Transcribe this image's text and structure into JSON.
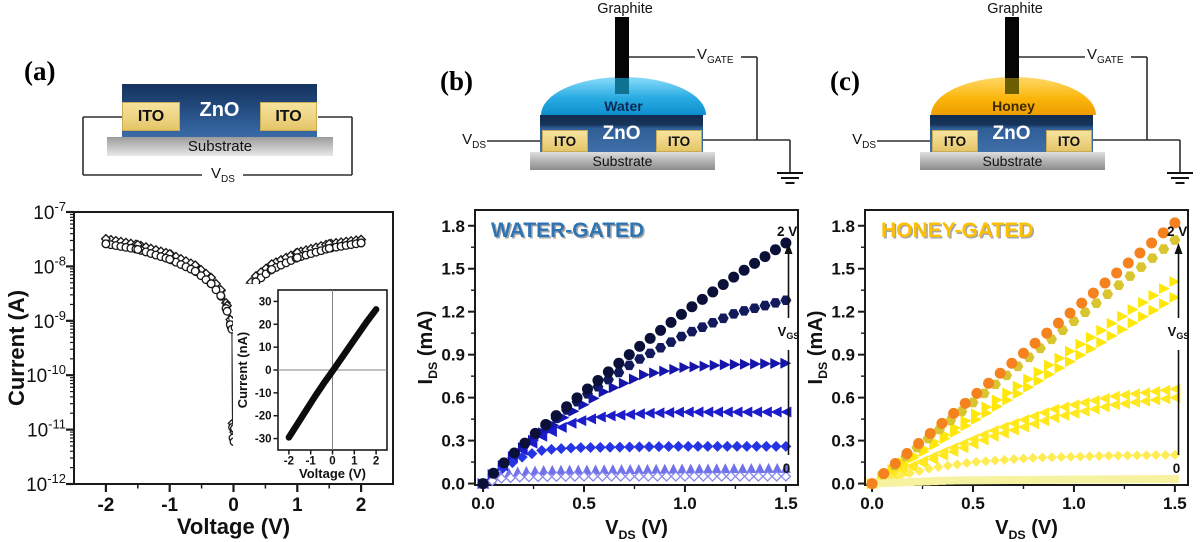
{
  "figure": {
    "background": "#FFFFFF"
  },
  "schematics": {
    "a": {
      "panel_label": "(a)",
      "zno": "ZnO",
      "ito_left": "ITO",
      "ito_right": "ITO",
      "substrate": "Substrate",
      "vds_base": "V",
      "vds_sub": "DS"
    },
    "b": {
      "panel_label": "(b)",
      "graphite": "Graphite",
      "droplet": "Water",
      "droplet_colors": [
        "#8ADCF9",
        "#29ABE2",
        "#0D8FCE"
      ],
      "droplet_label_color": "#0A2A52",
      "stub_color": "#0F7293",
      "zno": "ZnO",
      "ito_left": "ITO",
      "ito_right": "ITO",
      "substrate": "Substrate",
      "vds_base": "V",
      "vds_sub": "DS",
      "vgate_base": "V",
      "vgate_sub": "GATE"
    },
    "c": {
      "panel_label": "(c)",
      "graphite": "Graphite",
      "droplet": "Honey",
      "droplet_colors": [
        "#FFD96A",
        "#FBB60C",
        "#EE9D00"
      ],
      "droplet_label_color": "#3D2B00",
      "stub_color": "#6B5D00",
      "zno": "ZnO",
      "ito_left": "ITO",
      "ito_right": "ITO",
      "substrate": "Substrate",
      "vds_base": "V",
      "vds_sub": "DS",
      "vgate_base": "V",
      "vgate_sub": "GATE"
    }
  },
  "chart_data": [
    {
      "id": "device-iv",
      "type": "scatter",
      "x_scale": "linear",
      "y_scale": "log",
      "xlabel": "Voltage (V)",
      "ylabel": "Current (A)",
      "xlim": [
        -2.5,
        2.5
      ],
      "x_ticks": [
        -2,
        -1,
        0,
        1,
        2
      ],
      "x_tick_labels": [
        "-2",
        "-1",
        "0",
        "1",
        "2"
      ],
      "x_minor": [
        -1.5,
        -0.5,
        0.5,
        1.5
      ],
      "ylim_exp": [
        -12,
        -7
      ],
      "y_ticks_exp": [
        -7,
        -8,
        -9,
        -10,
        -11,
        -12
      ],
      "series": [
        {
          "name": "iv-sweep-open-diamonds",
          "marker": "diamond",
          "fill": "#FFFFFF",
          "stroke": "#161616",
          "size": 4.2,
          "n_markers": 52,
          "anchors": [
            [
              -2,
              3.2e-08
            ],
            [
              -1.5,
              2.5e-08
            ],
            [
              -1,
              1.7e-08
            ],
            [
              -0.6,
              1.05e-08
            ],
            [
              -0.35,
              6.2e-09
            ],
            [
              -0.2,
              3.7e-09
            ],
            [
              -0.1,
              1.9e-09
            ],
            [
              -0.05,
              1.05e-09
            ],
            [
              -0.025,
              8e-10
            ],
            [
              -0.015,
              1.3e-11
            ],
            [
              0.012,
              9e-12
            ],
            [
              0.025,
              8.5e-10
            ],
            [
              0.05,
              1.15e-09
            ],
            [
              0.1,
              2.1e-09
            ],
            [
              0.2,
              4e-09
            ],
            [
              0.35,
              6.6e-09
            ],
            [
              0.6,
              1.1e-08
            ],
            [
              1,
              1.8e-08
            ],
            [
              1.5,
              2.6e-08
            ],
            [
              2,
              3.1e-08
            ]
          ]
        },
        {
          "name": "iv-sweep-open-circles",
          "marker": "circle",
          "fill": "#FFFFFF",
          "stroke": "#161616",
          "size": 3.8,
          "n_markers": 52,
          "anchors": [
            [
              -2,
              2.6e-08
            ],
            [
              -1.5,
              2.05e-08
            ],
            [
              -1,
              1.35e-08
            ],
            [
              -0.6,
              8.2e-09
            ],
            [
              -0.35,
              4.8e-09
            ],
            [
              -0.2,
              2.9e-09
            ],
            [
              -0.1,
              1.5e-09
            ],
            [
              -0.05,
              8.5e-10
            ],
            [
              -0.025,
              7e-10
            ],
            [
              -0.015,
              1.1e-11
            ],
            [
              -0.008,
              7e-12
            ],
            [
              0.008,
              6e-12
            ],
            [
              0.015,
              1.05e-11
            ],
            [
              0.025,
              7.5e-10
            ],
            [
              0.05,
              9e-10
            ],
            [
              0.1,
              1.6e-09
            ],
            [
              0.2,
              3.1e-09
            ],
            [
              0.35,
              5.2e-09
            ],
            [
              0.6,
              8.8e-09
            ],
            [
              1,
              1.45e-08
            ],
            [
              1.5,
              2.15e-08
            ],
            [
              2,
              2.7e-08
            ]
          ]
        }
      ]
    },
    {
      "id": "device-iv-inset",
      "type": "line",
      "xlabel": "Voltage (V)",
      "ylabel": "Current (nA)",
      "xlim": [
        -2.5,
        2.5
      ],
      "ylim": [
        -35,
        35
      ],
      "x_ticks": [
        -2,
        -1,
        0,
        1,
        2
      ],
      "x_tick_labels": [
        "-2",
        "-1",
        "0",
        "1",
        "2"
      ],
      "y_ticks": [
        30,
        20,
        10,
        0,
        -10,
        -20,
        -30
      ],
      "y_tick_labels": [
        "30",
        "20",
        "10",
        "0",
        "-10",
        "-20",
        "-30"
      ],
      "zero_lines": true,
      "series": [
        {
          "name": "iv-linear-band",
          "color": "#0C0C0C",
          "width": 6.5,
          "points": [
            [
              -2,
              -29.5
            ],
            [
              -1.6,
              -23.5
            ],
            [
              -1.2,
              -17.5
            ],
            [
              -0.8,
              -11.5
            ],
            [
              -0.4,
              -5.8
            ],
            [
              0,
              -0.5
            ],
            [
              0.4,
              5
            ],
            [
              0.8,
              10.5
            ],
            [
              1.2,
              16
            ],
            [
              1.6,
              21.5
            ],
            [
              2,
              26.5
            ]
          ]
        }
      ]
    },
    {
      "id": "water-output",
      "type": "scatter",
      "title": "WATER-GATED",
      "title_color": "#2E74B5",
      "title_shadow": "#A6A6A6",
      "xlabel_base": "V",
      "xlabel_sub": "DS",
      "xlabel_unit": " (V)",
      "ylabel_base": "I",
      "ylabel_sub": "DS",
      "ylabel_unit": " (mA)",
      "xlim": [
        -0.04,
        1.56
      ],
      "ylim": [
        -0.01,
        1.91
      ],
      "x_ticks": [
        0,
        0.5,
        1,
        1.5
      ],
      "x_tick_labels": [
        "0.0",
        "0.5",
        "1.0",
        "1.5"
      ],
      "x_minor": [
        0.25,
        0.75,
        1.25
      ],
      "y_ticks": [
        0,
        0.3,
        0.6,
        0.9,
        1.2,
        1.5,
        1.8
      ],
      "y_tick_labels": [
        "0.0",
        "0.3",
        "0.6",
        "0.9",
        "1.2",
        "1.5",
        "1.8"
      ],
      "y_minor": [
        0.15,
        0.45,
        0.75,
        1.05,
        1.35,
        1.65
      ],
      "gate_annotation": {
        "top_label": "2 V",
        "bottom_label": "0",
        "axis_base": "V",
        "axis_sub": "GS"
      },
      "series": [
        {
          "name": "hexagons-high-vgs",
          "marker": "hexagon",
          "color": "#121A5C",
          "size": 5.5,
          "n": 30,
          "anchors": [
            [
              0,
              0
            ],
            [
              0.1,
              0.14
            ],
            [
              0.25,
              0.33
            ],
            [
              0.5,
              0.61
            ],
            [
              0.75,
              0.85
            ],
            [
              1,
              1.04
            ],
            [
              1.25,
              1.19
            ],
            [
              1.5,
              1.28
            ]
          ]
        },
        {
          "name": "right-triangles-mid-vgs",
          "marker": "triangle-right",
          "color": "#1515AC",
          "size": 5.5,
          "n": 31,
          "anchors": [
            [
              0,
              0
            ],
            [
              0.2,
              0.25
            ],
            [
              0.4,
              0.46
            ],
            [
              0.6,
              0.64
            ],
            [
              0.8,
              0.76
            ],
            [
              1,
              0.81
            ],
            [
              1.2,
              0.83
            ],
            [
              1.5,
              0.84
            ]
          ]
        },
        {
          "name": "left-triangles-mid-vgs",
          "marker": "triangle-left",
          "color": "#1C1CCB",
          "size": 5.5,
          "n": 32,
          "anchors": [
            [
              0,
              0
            ],
            [
              0.15,
              0.19
            ],
            [
              0.3,
              0.34
            ],
            [
              0.45,
              0.43
            ],
            [
              0.6,
              0.47
            ],
            [
              0.8,
              0.49
            ],
            [
              1,
              0.5
            ],
            [
              1.5,
              0.5
            ]
          ]
        },
        {
          "name": "diamonds-low-vgs",
          "marker": "diamond",
          "color": "#2535E6",
          "size": 5.5,
          "n": 32,
          "anchors": [
            [
              0,
              0
            ],
            [
              0.1,
              0.11
            ],
            [
              0.2,
              0.19
            ],
            [
              0.3,
              0.235
            ],
            [
              0.45,
              0.25
            ],
            [
              0.7,
              0.255
            ],
            [
              1,
              0.26
            ],
            [
              1.5,
              0.26
            ]
          ]
        },
        {
          "name": "up-triangles-near-0V",
          "marker": "triangle-up",
          "color": "#7171E9",
          "size": 5,
          "n": 36,
          "anchors": [
            [
              0,
              0
            ],
            [
              0.08,
              0.06
            ],
            [
              0.15,
              0.082
            ],
            [
              0.3,
              0.095
            ],
            [
              0.6,
              0.1
            ],
            [
              1,
              0.105
            ],
            [
              1.5,
              0.11
            ]
          ]
        },
        {
          "name": "open-diamonds-vgs-0V",
          "marker": "diamond",
          "color": "#FFFFFF",
          "stroke": "#8787EC",
          "size": 4.6,
          "n": 34,
          "anchors": [
            [
              0,
              0
            ],
            [
              0.08,
              0.035
            ],
            [
              0.2,
              0.046
            ],
            [
              0.5,
              0.05
            ],
            [
              1,
              0.05
            ],
            [
              1.5,
              0.05
            ]
          ]
        },
        {
          "name": "circles-vgs-2V",
          "marker": "circle",
          "color": "#0A1038",
          "size": 5.5,
          "n": 30,
          "anchors": [
            [
              0,
              0
            ],
            [
              0.1,
              0.14
            ],
            [
              0.25,
              0.34
            ],
            [
              0.5,
              0.64
            ],
            [
              0.75,
              0.93
            ],
            [
              1,
              1.2
            ],
            [
              1.25,
              1.45
            ],
            [
              1.5,
              1.68
            ]
          ]
        }
      ]
    },
    {
      "id": "honey-output",
      "type": "scatter",
      "title": "HONEY-GATED",
      "title_color": "#FFC000",
      "title_shadow": "#A6A6A6",
      "xlabel_base": "V",
      "xlabel_sub": "DS",
      "xlabel_unit": " (V)",
      "ylabel_base": "I",
      "ylabel_sub": "DS",
      "ylabel_unit": " (mA)",
      "xlim": [
        -0.035,
        1.565
      ],
      "ylim": [
        -0.01,
        1.91
      ],
      "x_ticks": [
        0,
        0.5,
        1,
        1.5
      ],
      "x_tick_labels": [
        "0.0",
        "0.5",
        "1.0",
        "1.5"
      ],
      "x_minor": [
        0.25,
        0.75,
        1.25
      ],
      "y_ticks": [
        0,
        0.3,
        0.6,
        0.9,
        1.2,
        1.5,
        1.8
      ],
      "y_tick_labels": [
        "0.0",
        "0.3",
        "0.6",
        "0.9",
        "1.2",
        "1.5",
        "1.8"
      ],
      "y_minor": [
        0.15,
        0.45,
        0.75,
        1.05,
        1.35,
        1.65
      ],
      "gate_annotation": {
        "top_label": "2 V",
        "bottom_label": "0",
        "axis_base": "V",
        "axis_sub": "GS"
      },
      "series": [
        {
          "name": "right-triangles-return",
          "marker": "triangle-right",
          "color": "#FFE70A",
          "size": 5.5,
          "n": 30,
          "anchors": [
            [
              0,
              0
            ],
            [
              1.5,
              1.3
            ]
          ]
        },
        {
          "name": "right-triangles-forward",
          "marker": "triangle-right",
          "color": "#FFE70A",
          "size": 5.5,
          "n": 30,
          "anchors": [
            [
              0,
              0
            ],
            [
              1.5,
              1.41
            ]
          ]
        },
        {
          "name": "left-triangles-return",
          "marker": "triangle-left",
          "color": "#FFE81E",
          "size": 5.5,
          "n": 31,
          "anchors": [
            [
              0,
              0
            ],
            [
              0.3,
              0.17
            ],
            [
              0.6,
              0.33
            ],
            [
              0.9,
              0.46
            ],
            [
              1.2,
              0.55
            ],
            [
              1.5,
              0.6
            ]
          ]
        },
        {
          "name": "left-triangles-forward",
          "marker": "triangle-left",
          "color": "#FFE81E",
          "size": 5.5,
          "n": 31,
          "anchors": [
            [
              0,
              0
            ],
            [
              0.3,
              0.19
            ],
            [
              0.6,
              0.37
            ],
            [
              0.9,
              0.52
            ],
            [
              1.2,
              0.61
            ],
            [
              1.5,
              0.66
            ]
          ]
        },
        {
          "name": "diamonds-low-vgs",
          "marker": "diamond",
          "color": "#FFEC52",
          "size": 5,
          "n": 33,
          "anchors": [
            [
              0,
              0
            ],
            [
              0.15,
              0.06
            ],
            [
              0.3,
              0.11
            ],
            [
              0.5,
              0.15
            ],
            [
              0.8,
              0.18
            ],
            [
              1.2,
              0.195
            ],
            [
              1.5,
              0.2
            ]
          ]
        },
        {
          "name": "squares-vgs-0V",
          "marker": "square",
          "color": "#F7F2A0",
          "size": 4,
          "n": 40,
          "anchors": [
            [
              0,
              0
            ],
            [
              0.4,
              0.022
            ],
            [
              1,
              0.028
            ],
            [
              1.5,
              0.032
            ]
          ]
        },
        {
          "name": "hexagons-high-vgs",
          "marker": "hexagon",
          "color": "#D8C52F",
          "size": 5.5,
          "n": 28,
          "anchors": [
            [
              0,
              0
            ],
            [
              1.5,
              1.7
            ]
          ]
        },
        {
          "name": "circles-vgs-2V",
          "marker": "circle",
          "color": "#F5821F",
          "size": 5.5,
          "n": 27,
          "anchors": [
            [
              0,
              0
            ],
            [
              1.5,
              1.82
            ]
          ]
        }
      ]
    }
  ]
}
